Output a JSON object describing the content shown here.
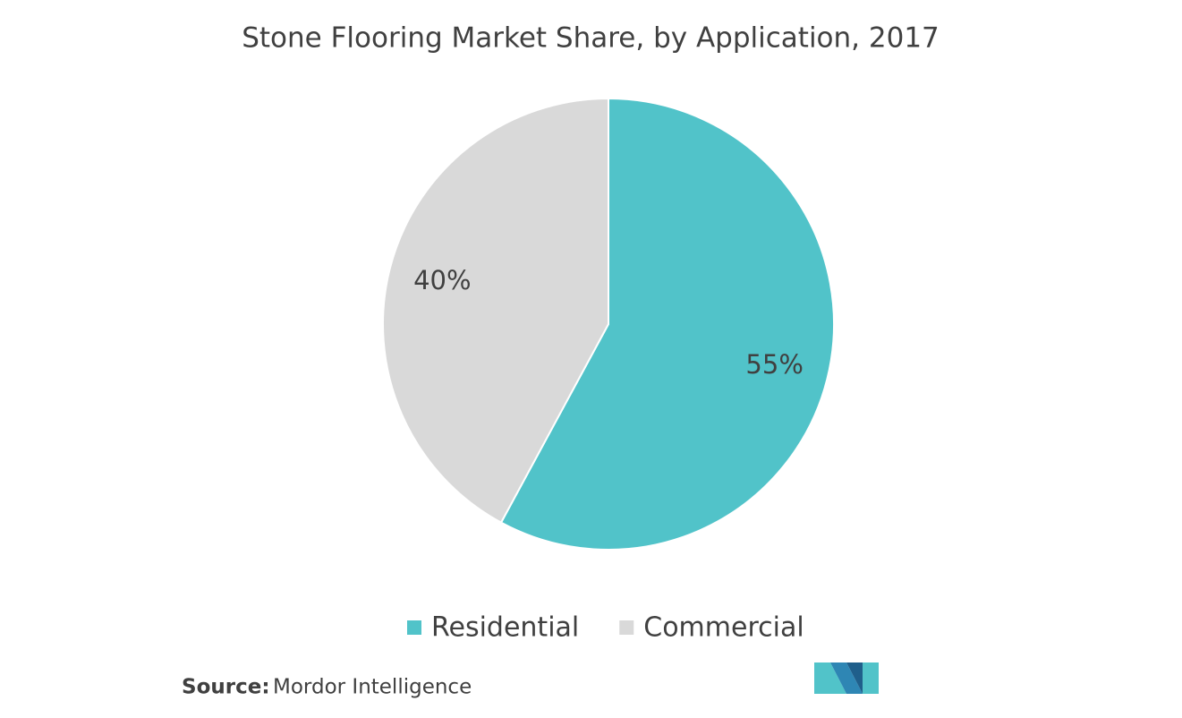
{
  "chart_data": {
    "type": "pie",
    "title": "Stone Flooring Market Share,  by Application, 2017",
    "categories": [
      "Residential",
      "Commercial"
    ],
    "values": [
      55,
      40
    ],
    "value_labels": [
      "55%",
      "40%"
    ],
    "colors": [
      "#51c3c9",
      "#d9d9d9"
    ],
    "source_label": "Source:",
    "source": "Mordor Intelligence"
  }
}
